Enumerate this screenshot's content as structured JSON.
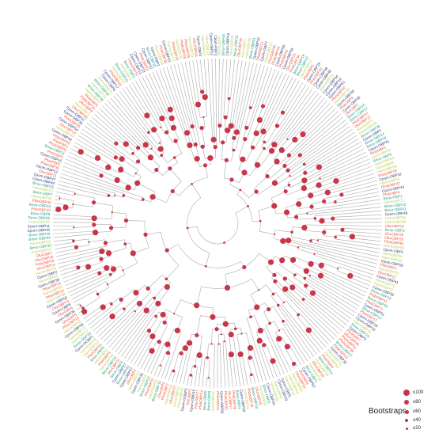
{
  "colors": {
    "branch": "#aaaaaa",
    "bootstrap_dot": "#c8364a",
    "label_red": "#f0533a",
    "label_teal": "#1fa08a",
    "label_navy": "#2c3e7a",
    "label_olive": "#bcd05a"
  },
  "legend": {
    "title": "Bootstraps",
    "levels": [
      "≤100",
      "≤80",
      "≤60",
      "≤40",
      "≤20"
    ],
    "relative_sizes": [
      1.0,
      0.8,
      0.6,
      0.4,
      0.2
    ]
  },
  "tree_labels": [
    {
      "text": "Cpom-PBP3",
      "group": "navy"
    },
    {
      "text": "Cpom-PBP2",
      "group": "navy"
    },
    {
      "text": "Bmor-PBP1",
      "group": "teal"
    },
    {
      "text": "Bmor-PBP2",
      "group": "teal"
    },
    {
      "text": "Bmor-PBP3",
      "group": "teal"
    },
    {
      "text": "Bmor-PBP4",
      "group": "teal"
    },
    {
      "text": "PfobGBP1",
      "group": "red"
    },
    {
      "text": "PfobGBP2",
      "group": "red"
    },
    {
      "text": "PfobPBP1",
      "group": "red"
    },
    {
      "text": "PfobPBP2",
      "group": "red"
    },
    {
      "text": "Cpom-GOBP1",
      "group": "navy"
    },
    {
      "text": "Cpom-GOBP2",
      "group": "navy"
    },
    {
      "text": "Cpom-OBP1",
      "group": "navy"
    },
    {
      "text": "Cpom-OBP2",
      "group": "navy"
    },
    {
      "text": "Cpom-OBP3",
      "group": "navy"
    },
    {
      "text": "Cpom-OBP4",
      "group": "navy"
    },
    {
      "text": "Cpom-OBP5",
      "group": "navy"
    },
    {
      "text": "Cpom-OBP6",
      "group": "navy"
    },
    {
      "text": "Cpom-OBP7",
      "group": "navy"
    },
    {
      "text": "Cpom-OBP8",
      "group": "navy"
    },
    {
      "text": "Cpom-OBP9",
      "group": "navy"
    },
    {
      "text": "Cpom-OBP10",
      "group": "navy"
    },
    {
      "text": "Cpom-OBP11",
      "group": "navy"
    },
    {
      "text": "Cpom-OBP12",
      "group": "navy"
    },
    {
      "text": "Cpom-OBP13",
      "group": "navy"
    },
    {
      "text": "Cpom-OBP14",
      "group": "navy"
    },
    {
      "text": "Cpom-OBP15",
      "group": "navy"
    },
    {
      "text": "Cpom-OBP16",
      "group": "navy"
    },
    {
      "text": "Cpom-OBP17",
      "group": "navy"
    },
    {
      "text": "Cpom-OBP18",
      "group": "navy"
    },
    {
      "text": "Cpom-OBP19",
      "group": "navy"
    },
    {
      "text": "Cpom-OBP20",
      "group": "navy"
    },
    {
      "text": "Cpom-OBP21",
      "group": "navy"
    },
    {
      "text": "Cpom-OBP22",
      "group": "navy"
    },
    {
      "text": "Cpom-OBP23",
      "group": "navy"
    },
    {
      "text": "Cpom-OBP24",
      "group": "navy"
    },
    {
      "text": "Cpom-OBP25",
      "group": "navy"
    },
    {
      "text": "Cpom-OBP26",
      "group": "navy"
    },
    {
      "text": "Cpom-OBP27",
      "group": "navy"
    },
    {
      "text": "Cpom-OBP28",
      "group": "navy"
    },
    {
      "text": "Cpom-OBP29",
      "group": "navy"
    },
    {
      "text": "Cpom-OBP30",
      "group": "navy"
    },
    {
      "text": "Cpom-OBP31",
      "group": "navy"
    },
    {
      "text": "Cpom-OBP32",
      "group": "navy"
    },
    {
      "text": "Cpom-OBP33",
      "group": "navy"
    },
    {
      "text": "Cpom-OBP34",
      "group": "navy"
    },
    {
      "text": "Cpom-OBP35",
      "group": "navy"
    },
    {
      "text": "Cpom-OBP36",
      "group": "navy"
    },
    {
      "text": "Cpom-OBP37",
      "group": "navy"
    },
    {
      "text": "Cpom-OBP38",
      "group": "navy"
    },
    {
      "text": "Cpom-OBP39",
      "group": "navy"
    },
    {
      "text": "Cpom-OBP40",
      "group": "navy"
    },
    {
      "text": "Cpom-OBP41",
      "group": "navy"
    },
    {
      "text": "Cpom-OBP42",
      "group": "navy"
    },
    {
      "text": "Cpom-OBP43",
      "group": "navy"
    },
    {
      "text": "Cpom-OBP44",
      "group": "navy"
    },
    {
      "text": "Cpom-OBP45",
      "group": "navy"
    },
    {
      "text": "Cpom-OBP46",
      "group": "navy"
    },
    {
      "text": "Cpom-OBP47",
      "group": "navy"
    },
    {
      "text": "Cpom-OBP48",
      "group": "navy"
    },
    {
      "text": "Cpom-OBP49",
      "group": "navy"
    },
    {
      "text": "Cpom-OBP50",
      "group": "navy"
    },
    {
      "text": "Cpom-OBP51",
      "group": "navy"
    },
    {
      "text": "Cpom-OBP52",
      "group": "navy"
    },
    {
      "text": "Cpom-OBP53",
      "group": "navy"
    },
    {
      "text": "Cpom-OBP54",
      "group": "navy"
    },
    {
      "text": "Cpom-OBP55",
      "group": "navy"
    },
    {
      "text": "Cpom-OBP56",
      "group": "navy"
    },
    {
      "text": "Cpom-OBP57",
      "group": "navy"
    },
    {
      "text": "Cpom-OBP58",
      "group": "navy"
    },
    {
      "text": "Cpom-OBP59",
      "group": "navy"
    },
    {
      "text": "Cpom-OBP60",
      "group": "navy"
    },
    {
      "text": "Cpom-OBP61",
      "group": "navy"
    },
    {
      "text": "Bmor-OBP1",
      "group": "teal"
    },
    {
      "text": "Bmor-OBP2",
      "group": "teal"
    },
    {
      "text": "Bmor-OBP3",
      "group": "teal"
    },
    {
      "text": "Bmor-OBP4",
      "group": "teal"
    },
    {
      "text": "Bmor-OBP5",
      "group": "teal"
    },
    {
      "text": "Bmor-OBP6",
      "group": "teal"
    },
    {
      "text": "Bmor-OBP7",
      "group": "teal"
    },
    {
      "text": "Bmor-OBP8",
      "group": "teal"
    },
    {
      "text": "Bmor-OBP9",
      "group": "teal"
    },
    {
      "text": "Bmor-OBP10",
      "group": "teal"
    },
    {
      "text": "Bmor-OBP11",
      "group": "teal"
    },
    {
      "text": "Bmor-OBP12",
      "group": "teal"
    },
    {
      "text": "Bmor-OBP13",
      "group": "teal"
    },
    {
      "text": "Bmor-OBP14",
      "group": "teal"
    },
    {
      "text": "Bmor-OBP15",
      "group": "teal"
    },
    {
      "text": "Bmor-OBP16",
      "group": "teal"
    },
    {
      "text": "Bmor-OBP17",
      "group": "teal"
    },
    {
      "text": "Bmor-OBP18",
      "group": "teal"
    },
    {
      "text": "Bmor-OBP19",
      "group": "teal"
    },
    {
      "text": "Bmor-OBP20",
      "group": "teal"
    },
    {
      "text": "Bmor-OBP21",
      "group": "teal"
    },
    {
      "text": "Bmor-OBP22",
      "group": "teal"
    },
    {
      "text": "Bmor-OBP23",
      "group": "teal"
    },
    {
      "text": "Bmor-OBP24",
      "group": "teal"
    },
    {
      "text": "Bmor-OBP25",
      "group": "teal"
    },
    {
      "text": "Bmor-OBP26",
      "group": "teal"
    },
    {
      "text": "Bmor-OBP27",
      "group": "teal"
    },
    {
      "text": "Bmor-OBP28",
      "group": "teal"
    },
    {
      "text": "Bmor-OBP29",
      "group": "teal"
    },
    {
      "text": "Bmor-OBP30",
      "group": "teal"
    },
    {
      "text": "Bmor-OBP31",
      "group": "teal"
    },
    {
      "text": "Bmor-OBP32",
      "group": "teal"
    },
    {
      "text": "Bmor-OBP33",
      "group": "teal"
    },
    {
      "text": "Bmor-OBP34",
      "group": "teal"
    },
    {
      "text": "Bmor-OBP35",
      "group": "teal"
    },
    {
      "text": "Bmor-OBP36",
      "group": "teal"
    },
    {
      "text": "Bmor-OBP37",
      "group": "teal"
    },
    {
      "text": "Bmor-OBP38",
      "group": "teal"
    },
    {
      "text": "Bmor-OBP39",
      "group": "teal"
    },
    {
      "text": "Bmor-OBP40",
      "group": "teal"
    },
    {
      "text": "Bmor-OBP41",
      "group": "teal"
    },
    {
      "text": "Bmor-OBP42",
      "group": "teal"
    },
    {
      "text": "Bmor-OBP43",
      "group": "teal"
    },
    {
      "text": "Bmor-OBP44",
      "group": "teal"
    },
    {
      "text": "PfobOBP1",
      "group": "red"
    },
    {
      "text": "PfobOBP2",
      "group": "red"
    },
    {
      "text": "PfobOBP3",
      "group": "red"
    },
    {
      "text": "PfobOBP4",
      "group": "red"
    },
    {
      "text": "PfobOBP5",
      "group": "red"
    },
    {
      "text": "PfobOBP6",
      "group": "red"
    },
    {
      "text": "PfobOBP7",
      "group": "red"
    },
    {
      "text": "PfobOBP8",
      "group": "red"
    },
    {
      "text": "PfobOBP9",
      "group": "red"
    },
    {
      "text": "PfobOBP10",
      "group": "red"
    },
    {
      "text": "PfobOBP11",
      "group": "red"
    },
    {
      "text": "PfobOBP12",
      "group": "red"
    },
    {
      "text": "PfobOBP13",
      "group": "red"
    },
    {
      "text": "PfobOBP14",
      "group": "red"
    },
    {
      "text": "PfobOBP15",
      "group": "red"
    },
    {
      "text": "PfobOBP16",
      "group": "red"
    },
    {
      "text": "PfobOBP17",
      "group": "red"
    },
    {
      "text": "PfobOBP18",
      "group": "red"
    },
    {
      "text": "PfobOBP19",
      "group": "red"
    },
    {
      "text": "PfobOBP20",
      "group": "red"
    },
    {
      "text": "PfobOBP21",
      "group": "red"
    },
    {
      "text": "PfobOBP22",
      "group": "red"
    },
    {
      "text": "PfobOBP23",
      "group": "red"
    },
    {
      "text": "PfobOBP24",
      "group": "red"
    },
    {
      "text": "PfobOBP25",
      "group": "red"
    },
    {
      "text": "PfobOBP26",
      "group": "red"
    },
    {
      "text": "PfobOBP27",
      "group": "red"
    },
    {
      "text": "PfobOBP28",
      "group": "red"
    },
    {
      "text": "PfobOBP29",
      "group": "red"
    },
    {
      "text": "PfobOBP30",
      "group": "red"
    },
    {
      "text": "PfobOBP31",
      "group": "red"
    },
    {
      "text": "PfobOBP32",
      "group": "red"
    },
    {
      "text": "PfobOBP33",
      "group": "red"
    },
    {
      "text": "PfobOBP34",
      "group": "red"
    },
    {
      "text": "PfobOBP35",
      "group": "red"
    },
    {
      "text": "PfobOBP36",
      "group": "red"
    },
    {
      "text": "PfobOBP37",
      "group": "red"
    },
    {
      "text": "PfobOBP38",
      "group": "red"
    },
    {
      "text": "PfobOBP39",
      "group": "red"
    },
    {
      "text": "PfobOBP40",
      "group": "red"
    },
    {
      "text": "PfobOBP41",
      "group": "red"
    },
    {
      "text": "PfobOBP42",
      "group": "red"
    },
    {
      "text": "PfobOBP43",
      "group": "red"
    },
    {
      "text": "PfobOBP44",
      "group": "red"
    },
    {
      "text": "PfobOBP45",
      "group": "red"
    },
    {
      "text": "PfobOBP46",
      "group": "red"
    },
    {
      "text": "PfobOBP47",
      "group": "red"
    },
    {
      "text": "PfobOBP48",
      "group": "red"
    },
    {
      "text": "PfobOBP49",
      "group": "red"
    },
    {
      "text": "PfobOBP50",
      "group": "red"
    },
    {
      "text": "PfobOBP51",
      "group": "red"
    },
    {
      "text": "PfobOBP52",
      "group": "red"
    },
    {
      "text": "OfurOBP1",
      "group": "red"
    },
    {
      "text": "OfurOBP2",
      "group": "red"
    },
    {
      "text": "OfurOBP3",
      "group": "red"
    },
    {
      "text": "OfurOBP4",
      "group": "red"
    },
    {
      "text": "OfurOBP5",
      "group": "red"
    },
    {
      "text": "OfurOBP6",
      "group": "red"
    },
    {
      "text": "OfurOBP7",
      "group": "red"
    },
    {
      "text": "OfurOBP8",
      "group": "red"
    },
    {
      "text": "OfurOBP9",
      "group": "red"
    },
    {
      "text": "OfurOBP10",
      "group": "red"
    },
    {
      "text": "OfurOBP11",
      "group": "red"
    },
    {
      "text": "OfurOBP12",
      "group": "red"
    },
    {
      "text": "OfurOBP13",
      "group": "red"
    },
    {
      "text": "OfurOBP14",
      "group": "red"
    },
    {
      "text": "OfurOBP15",
      "group": "red"
    },
    {
      "text": "OfurOBP16",
      "group": "red"
    },
    {
      "text": "OfurOBP17",
      "group": "red"
    },
    {
      "text": "OfurOBP18",
      "group": "red"
    },
    {
      "text": "OfurOBP19",
      "group": "red"
    },
    {
      "text": "OfurOBP20",
      "group": "red"
    },
    {
      "text": "OfurOBP21",
      "group": "red"
    },
    {
      "text": "OfurOBP22",
      "group": "red"
    },
    {
      "text": "OfurOBP23",
      "group": "red"
    },
    {
      "text": "OfurOBP24",
      "group": "red"
    },
    {
      "text": "OfurOBP25",
      "group": "red"
    },
    {
      "text": "OfurOBP26",
      "group": "red"
    },
    {
      "text": "OfurOBP27",
      "group": "red"
    },
    {
      "text": "OfurOBP28",
      "group": "red"
    },
    {
      "text": "OfurOBP29",
      "group": "red"
    },
    {
      "text": "OfurOBP30",
      "group": "red"
    },
    {
      "text": "HarmOBP1",
      "group": "olive"
    },
    {
      "text": "HarmOBP2",
      "group": "olive"
    },
    {
      "text": "HarmOBP3",
      "group": "olive"
    },
    {
      "text": "HarmOBP4",
      "group": "olive"
    },
    {
      "text": "HarmOBP5",
      "group": "olive"
    },
    {
      "text": "HarmOBP6",
      "group": "olive"
    },
    {
      "text": "HarmOBP7",
      "group": "olive"
    },
    {
      "text": "HarmOBP8",
      "group": "olive"
    },
    {
      "text": "HarmOBP9",
      "group": "olive"
    },
    {
      "text": "HarmOBP10",
      "group": "olive"
    },
    {
      "text": "HarmOBP11",
      "group": "olive"
    },
    {
      "text": "HarmOBP12",
      "group": "olive"
    },
    {
      "text": "HarmOBP13",
      "group": "olive"
    },
    {
      "text": "HarmOBP14",
      "group": "olive"
    },
    {
      "text": "HarmOBP15",
      "group": "olive"
    },
    {
      "text": "HarmOBP16",
      "group": "olive"
    },
    {
      "text": "HarmOBP17",
      "group": "olive"
    },
    {
      "text": "HarmOBP18",
      "group": "olive"
    },
    {
      "text": "HarmOBP19",
      "group": "olive"
    },
    {
      "text": "HarmOBP20",
      "group": "olive"
    },
    {
      "text": "HarmOBP21",
      "group": "olive"
    },
    {
      "text": "HarmOBP22",
      "group": "olive"
    },
    {
      "text": "HarmOBP23",
      "group": "olive"
    },
    {
      "text": "HarmOBP24",
      "group": "olive"
    },
    {
      "text": "HarmOBP25",
      "group": "olive"
    },
    {
      "text": "HarmOBP26",
      "group": "olive"
    },
    {
      "text": "HarmOBP27",
      "group": "olive"
    },
    {
      "text": "HarmOBP28",
      "group": "olive"
    },
    {
      "text": "HarmOBP29",
      "group": "olive"
    },
    {
      "text": "HarmOBP30",
      "group": "olive"
    },
    {
      "text": "HarmOBP31",
      "group": "olive"
    },
    {
      "text": "HarmOBP32",
      "group": "olive"
    },
    {
      "text": "HarmOBP33",
      "group": "olive"
    },
    {
      "text": "HarmOBP34",
      "group": "olive"
    },
    {
      "text": "HarmOBP35",
      "group": "olive"
    },
    {
      "text": "HarmOBP36",
      "group": "olive"
    },
    {
      "text": "HarmOBP37",
      "group": "olive"
    },
    {
      "text": "HarmOBP38",
      "group": "olive"
    },
    {
      "text": "HarmOBP39",
      "group": "olive"
    },
    {
      "text": "HarmOBP40",
      "group": "olive"
    },
    {
      "text": "HarmOBP41",
      "group": "olive"
    },
    {
      "text": "HarmOBP42",
      "group": "olive"
    },
    {
      "text": "HarmOBP43",
      "group": "olive"
    },
    {
      "text": "HarmOBP44",
      "group": "olive"
    },
    {
      "text": "HarmOBP45",
      "group": "olive"
    },
    {
      "text": "HarmOBP46",
      "group": "olive"
    },
    {
      "text": "HarmOBP47",
      "group": "olive"
    },
    {
      "text": "HarmOBP48",
      "group": "olive"
    },
    {
      "text": "HarmOBP49",
      "group": "olive"
    },
    {
      "text": "HarmOBP50",
      "group": "olive"
    },
    {
      "text": "HarmOBP51",
      "group": "olive"
    },
    {
      "text": "HarmOBP52",
      "group": "olive"
    },
    {
      "text": "HarmOBP53",
      "group": "olive"
    },
    {
      "text": "HarmOBP54",
      "group": "olive"
    },
    {
      "text": "HarmOBP55",
      "group": "olive"
    },
    {
      "text": "HarmOBP56",
      "group": "olive"
    },
    {
      "text": "HarmOBP57",
      "group": "olive"
    },
    {
      "text": "HarmOBP58",
      "group": "olive"
    },
    {
      "text": "HarmOBP59",
      "group": "olive"
    },
    {
      "text": "HarmOBP60",
      "group": "olive"
    },
    {
      "text": "HarmOBP61",
      "group": "olive"
    },
    {
      "text": "HarmOBP62",
      "group": "olive"
    },
    {
      "text": "HarmOBP63",
      "group": "olive"
    },
    {
      "text": "HarmOBP64",
      "group": "olive"
    },
    {
      "text": "HarmOBP65",
      "group": "olive"
    },
    {
      "text": "HarmOBP66",
      "group": "olive"
    },
    {
      "text": "HarmOBP67",
      "group": "olive"
    },
    {
      "text": "HarmOBP68",
      "group": "olive"
    },
    {
      "text": "HarmOBP69",
      "group": "olive"
    },
    {
      "text": "HarmOBP70",
      "group": "olive"
    },
    {
      "text": "HarmOBP71",
      "group": "olive"
    },
    {
      "text": "HarmOBP72",
      "group": "olive"
    }
  ]
}
